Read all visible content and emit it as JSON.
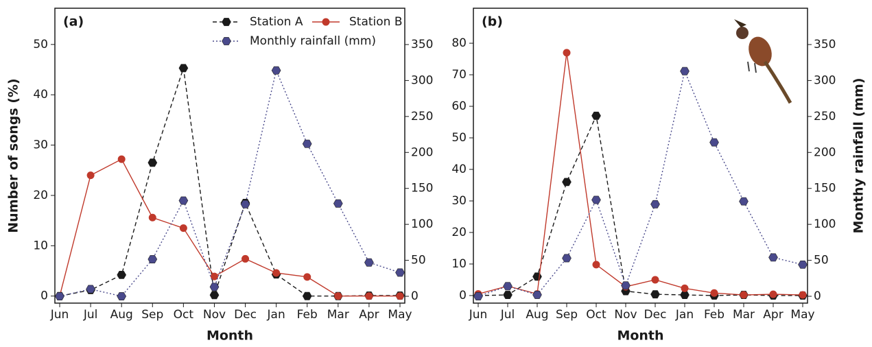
{
  "chart_data": [
    {
      "type": "line",
      "panel_label": "(a)",
      "y_label": "Number of songs (%)",
      "x_label": "Month",
      "categories": [
        "Jun",
        "Jul",
        "Aug",
        "Sep",
        "Oct",
        "Nov",
        "Dec",
        "Jan",
        "Feb",
        "Mar",
        "Apr",
        "May"
      ],
      "ylim": [
        -1.4,
        57.2
      ],
      "yticks": [
        0,
        10,
        20,
        30,
        40,
        50
      ],
      "y2lim": [
        -9.5,
        400.5
      ],
      "y2ticks": [
        0,
        50,
        100,
        150,
        200,
        250,
        300,
        350
      ],
      "legend": "top-right",
      "series": [
        {
          "name": "Station A",
          "color": "#1a1a1a",
          "marker": "hexagon",
          "dash": "dashed",
          "values": [
            0,
            1.2,
            4.2,
            26.5,
            45.3,
            0.2,
            18.5,
            4.3,
            0,
            0,
            0.1,
            0.1
          ]
        },
        {
          "name": "Station B",
          "color": "#c0392b",
          "marker": "circle",
          "dash": "solid",
          "values": [
            0,
            24,
            27.2,
            15.6,
            13.5,
            3.9,
            7.4,
            4.6,
            3.8,
            0,
            0,
            0
          ]
        },
        {
          "name": "Monthly rainfall (mm)",
          "color": "#4a4a8c",
          "marker": "hexagon",
          "dash": "dotted",
          "axis": "y2",
          "values": [
            0,
            10,
            0,
            51.5,
            133,
            13,
            128,
            314,
            212,
            129,
            47,
            33
          ]
        }
      ]
    },
    {
      "type": "line",
      "panel_label": "(b)",
      "y2_label": "Monthy rainfall (mm)",
      "x_label": "Month",
      "categories": [
        "Jun",
        "Jul",
        "Aug",
        "Sep",
        "Oct",
        "Nov",
        "Dec",
        "Jan",
        "Feb",
        "Mar",
        "Apr",
        "May"
      ],
      "ylim": [
        -2.4,
        91.1
      ],
      "yticks": [
        0,
        10,
        20,
        30,
        40,
        50,
        60,
        70,
        80
      ],
      "y2lim": [
        -9.5,
        400.5
      ],
      "y2ticks": [
        0,
        50,
        100,
        150,
        200,
        250,
        300,
        350
      ],
      "series": [
        {
          "color": "#1a1a1a",
          "marker": "hexagon",
          "dash": "dashed",
          "values": [
            0,
            0.2,
            6,
            36,
            57,
            1.4,
            0.4,
            0.2,
            0,
            0.2,
            0,
            0
          ]
        },
        {
          "color": "#c0392b",
          "marker": "circle",
          "dash": "solid",
          "values": [
            0.5,
            3,
            0.5,
            77,
            9.8,
            2.8,
            5,
            2.3,
            0.8,
            0.2,
            0.4,
            0.2
          ]
        },
        {
          "color": "#4a4a8c",
          "marker": "hexagon",
          "dash": "dotted",
          "axis": "y2",
          "values": [
            0,
            14,
            2,
            53,
            134,
            15,
            128,
            313,
            214,
            132,
            54,
            44
          ]
        }
      ]
    }
  ]
}
